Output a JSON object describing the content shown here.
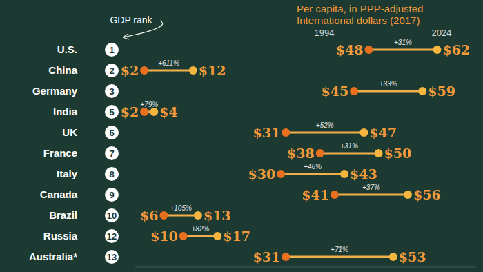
{
  "chart_data": {
    "type": "dumbbell",
    "orientation": "horizontal",
    "data_labels": true,
    "tick_labels": "y",
    "categories": [
      "U.S.",
      "China",
      "Germany",
      "India",
      "UK",
      "France",
      "Italy",
      "Canada",
      "Brazil",
      "Russia",
      "Australia*"
    ],
    "gdp_rank": [
      1,
      2,
      3,
      5,
      6,
      7,
      8,
      9,
      10,
      12,
      13
    ],
    "series": [
      {
        "name": "1994",
        "color": "#e8701e",
        "values": [
          48,
          2,
          45,
          2,
          31,
          38,
          30,
          41,
          6,
          10,
          31
        ],
        "value_labels": [
          "$48",
          "$2",
          "$45",
          "$2",
          "$31",
          "$38",
          "$30",
          "$41",
          "$6",
          "$10",
          "$31"
        ]
      },
      {
        "name": "2024",
        "color": "#f5b53f",
        "values": [
          62,
          12,
          59,
          4,
          47,
          50,
          43,
          56,
          13,
          17,
          53
        ],
        "value_labels": [
          "$62",
          "$12",
          "$59",
          "$4",
          "$47",
          "$50",
          "$43",
          "$56",
          "$13",
          "$17",
          "$53"
        ]
      }
    ],
    "changes": [
      31,
      611,
      33,
      79,
      52,
      31,
      46,
      37,
      105,
      82,
      71
    ],
    "change_labels": [
      "+31%",
      "+611%",
      "+33%",
      "+79%",
      "+52%",
      "+31%",
      "+46%",
      "+37%",
      "+105%",
      "+82%",
      "+71%"
    ],
    "annotations": [
      "GDP rank",
      "Per capita, in PPP-adjusted International dollars (2017)"
    ],
    "xlim": [
      0,
      70
    ],
    "xticks": []
  }
}
